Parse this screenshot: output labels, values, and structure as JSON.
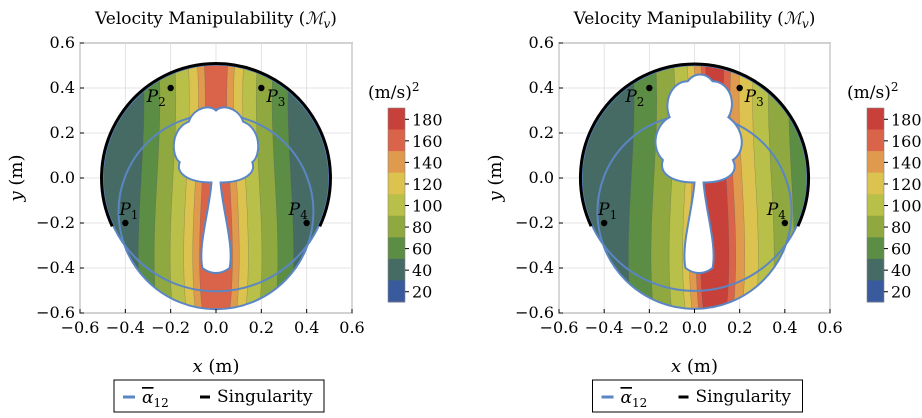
{
  "chart_data": [
    {
      "type": "contour",
      "title": "Velocity Manipulability (",
      "title_symbol": "ℳ",
      "title_sub": "v",
      "title_close": ")",
      "xlabel_var": "x",
      "xlabel_unit": "(m)",
      "ylabel_var": "y",
      "ylabel_unit": "(m)",
      "xlim": [
        -0.6,
        0.6
      ],
      "ylim": [
        -0.6,
        0.6
      ],
      "xticks": [
        "−0.6",
        "−0.4",
        "−0.2",
        "0.0",
        "0.2",
        "0.4",
        "0.6"
      ],
      "yticks": [
        "0.6",
        "0.4",
        "0.2",
        "0.0",
        "−0.2",
        "−0.4",
        "−0.6"
      ],
      "grid": true,
      "points": [
        {
          "label": "P",
          "sub": "1",
          "x": -0.4,
          "y": -0.2
        },
        {
          "label": "P",
          "sub": "2",
          "x": -0.2,
          "y": 0.4
        },
        {
          "label": "P",
          "sub": "3",
          "x": 0.2,
          "y": 0.4
        },
        {
          "label": "P",
          "sub": "4",
          "x": 0.4,
          "y": -0.2
        }
      ],
      "colorbar": {
        "unit": "(m/s)",
        "unit_sup": "2",
        "levels": [
          180,
          160,
          140,
          120,
          100,
          80,
          60,
          40,
          20
        ],
        "colors": [
          "#c8403a",
          "#d9644a",
          "#e09a4e",
          "#dcc24e",
          "#b8c049",
          "#8fa83f",
          "#5b8d45",
          "#466b64",
          "#3a5a9e"
        ]
      },
      "legend": {
        "alpha_symbol": "α",
        "alpha_sub": "12",
        "singularity": "Singularity",
        "alpha_color": "#5b86c4",
        "singularity_color": "#000000"
      }
    },
    {
      "type": "contour",
      "title": "Velocity Manipulability (",
      "title_symbol": "ℳ",
      "title_sub": "v",
      "title_close": ")",
      "xlabel_var": "x",
      "xlabel_unit": "(m)",
      "ylabel_var": "y",
      "ylabel_unit": "(m)",
      "xlim": [
        -0.6,
        0.6
      ],
      "ylim": [
        -0.6,
        0.6
      ],
      "xticks": [
        "−0.6",
        "−0.4",
        "−0.2",
        "0.0",
        "0.2",
        "0.4",
        "0.6"
      ],
      "yticks": [
        "0.6",
        "0.4",
        "0.2",
        "0.0",
        "−0.2",
        "−0.4",
        "−0.6"
      ],
      "grid": true,
      "points": [
        {
          "label": "P",
          "sub": "1",
          "x": -0.4,
          "y": -0.2
        },
        {
          "label": "P",
          "sub": "2",
          "x": -0.2,
          "y": 0.4
        },
        {
          "label": "P",
          "sub": "3",
          "x": 0.2,
          "y": 0.4
        },
        {
          "label": "P",
          "sub": "4",
          "x": 0.4,
          "y": -0.2
        }
      ],
      "colorbar": {
        "unit": "(m/s)",
        "unit_sup": "2",
        "levels": [
          180,
          160,
          140,
          120,
          100,
          80,
          60,
          40,
          20
        ],
        "colors": [
          "#c8403a",
          "#d9644a",
          "#e09a4e",
          "#dcc24e",
          "#b8c049",
          "#8fa83f",
          "#5b8d45",
          "#466b64",
          "#3a5a9e"
        ]
      },
      "legend": {
        "alpha_symbol": "α",
        "alpha_sub": "12",
        "singularity": "Singularity",
        "alpha_color": "#5b86c4",
        "singularity_color": "#000000"
      }
    }
  ]
}
